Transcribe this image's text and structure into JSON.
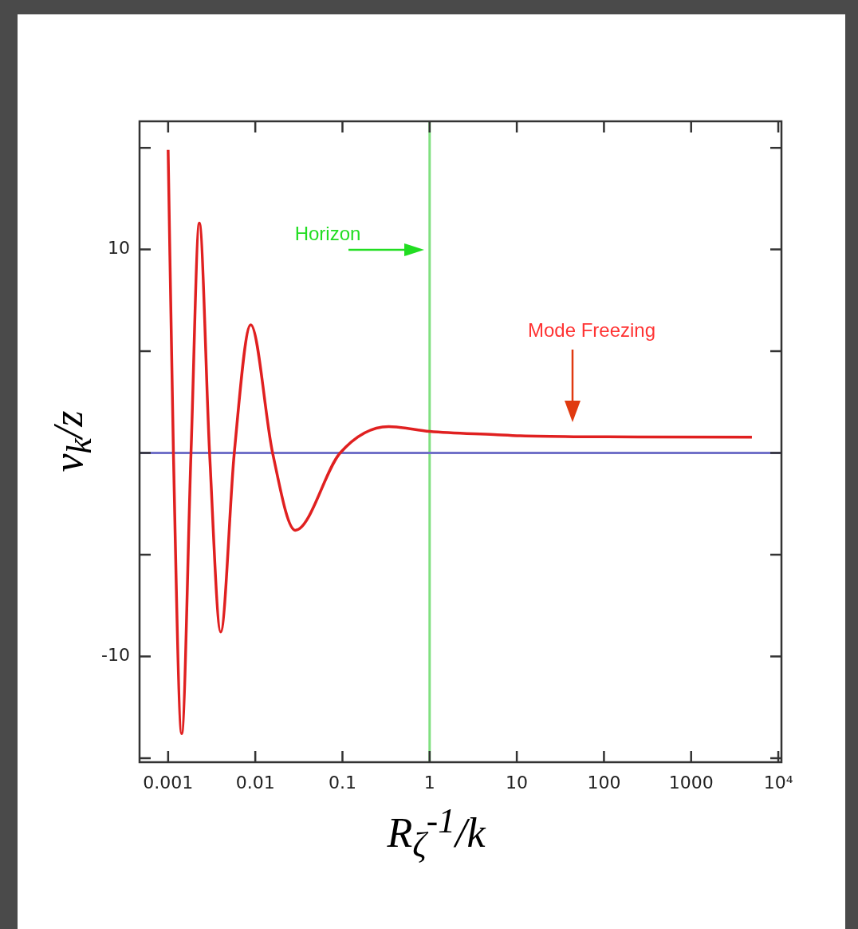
{
  "chart_data": {
    "type": "line",
    "xlabel": "R$_{ζ}$$^{-1}$/k",
    "ylabel": "v$_{k}$/z",
    "x": [
      0.001,
      0.00115,
      0.00143,
      0.00183,
      0.00228,
      0.00299,
      0.00401,
      0.00574,
      0.00887,
      0.0158,
      0.0287,
      0.094,
      0.34,
      1,
      5.5,
      11,
      45,
      4980
    ],
    "series": [
      {
        "color": "#e02020",
        "values": [
          14.9,
          0,
          -13.8,
          0,
          11.3,
          0,
          -8.8,
          0,
          6.3,
          0,
          -3.8,
          0,
          1.3,
          1.06,
          0.9,
          0.84,
          0.8,
          0.78
        ]
      }
    ],
    "log": "x",
    "xlim": [
      0.00047,
      10870
    ],
    "xticks": [
      0.001,
      0.01,
      0.1,
      1,
      10,
      100,
      1000,
      {
        "value": 10000,
        "label": "10⁴"
      }
    ],
    "ylim": [
      -15.2,
      16.3
    ],
    "yticks": [
      {
        "value": -15,
        "label": null
      },
      -10,
      {
        "value": -5,
        "label": null
      },
      {
        "value": 0,
        "label": null
      },
      {
        "value": 5,
        "label": null
      },
      10,
      {
        "value": 15,
        "label": null
      }
    ],
    "ref_lines": [
      {
        "axis": "x",
        "value": 1,
        "color": "#80e080"
      },
      {
        "axis": "y",
        "value": 0,
        "color": "#7070c8"
      }
    ],
    "annotations": [
      "Horizon",
      "Mode Freezing"
    ]
  }
}
